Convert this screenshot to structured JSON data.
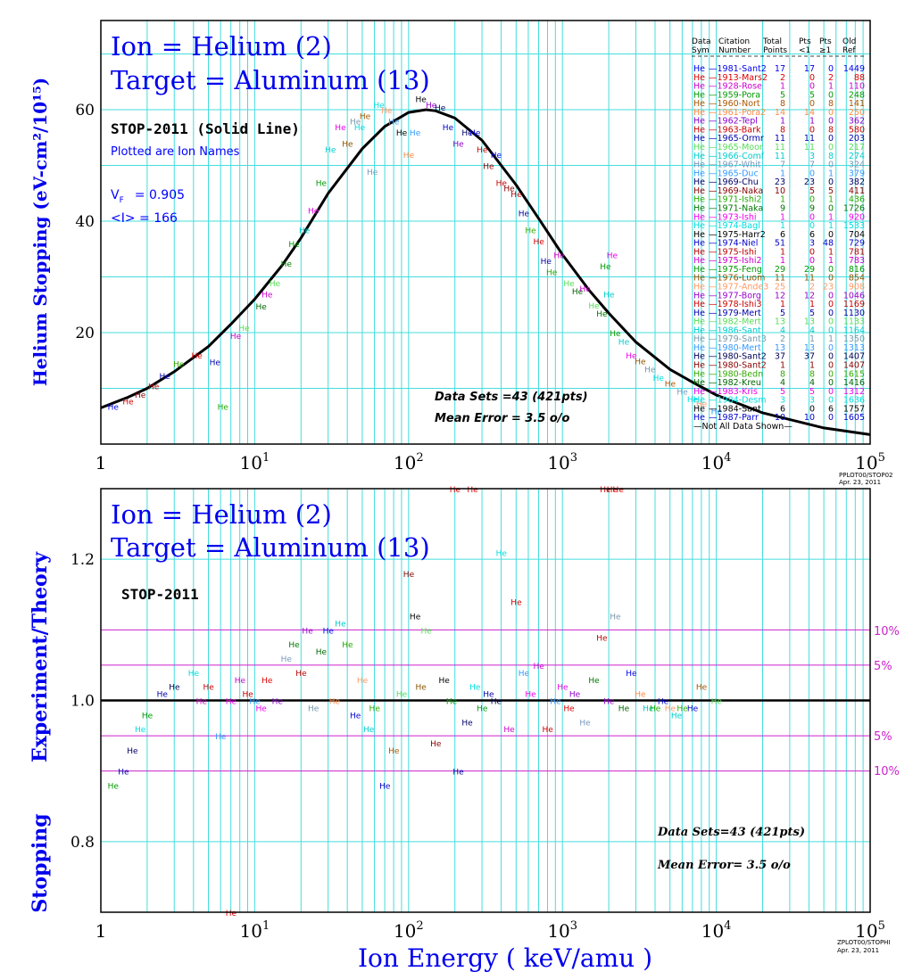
{
  "colors": {
    "grid": "#44dddd",
    "axis": "#000000",
    "title": "#0000ee",
    "theory": "#000000",
    "band": "#cc22cc",
    "label_blue": "#0000ff"
  },
  "top_panel": {
    "title_ion": "Ion = Helium (2)",
    "title_target": "Target = Aluminum (13)",
    "theory_label": "STOP-2011 (Solid Line)",
    "plotted_note": "Plotted are Ion Names",
    "vf_label": "V",
    "vf_sub": "F",
    "vf_value": "= 0.905",
    "i_label": "<I> = 166",
    "ylabel": "Helium Stopping (eV-cm²/10¹⁵)",
    "stats_sets": "Data Sets =43 (421pts)",
    "stats_error": "Mean Error =  3.5 o/o",
    "stamp1": "PPLOT00/STOP02",
    "stamp2": "Apr. 23, 2011"
  },
  "bottom_panel": {
    "title_ion": "Ion = Helium (2)",
    "title_target": "Target = Aluminum (13)",
    "theory_label": "STOP-2011",
    "ylabel_1": "Stopping",
    "ylabel_2": "Experiment/Theory",
    "xlabel": "Ion  Energy  ( keV/amu )",
    "stats_sets": "Data Sets=43 (421pts)",
    "stats_error": "Mean Error=  3.5 o/o",
    "band_10_top": "10%",
    "band_5_top": "5%",
    "band_5_bot": "5%",
    "band_10_bot": "10%",
    "stamp1": "ZPLOT00/STOPHI",
    "stamp2": "Apr. 23, 2011"
  },
  "legend": {
    "header1": [
      "Data",
      "Citation",
      "Total",
      "Pts",
      "Pts",
      "Old"
    ],
    "header2": [
      "Sym",
      "Number",
      "Points",
      "<1",
      "≥1",
      "Ref"
    ],
    "footer": "—Not All Data Shown—",
    "rows": [
      {
        "sym": "He",
        "cite": "1981-Sant2",
        "total": "17",
        "lt1": "17",
        "ge1": "0",
        "ref": "1449",
        "color": "#0000ee"
      },
      {
        "sym": "He",
        "cite": "1913-Mars2",
        "total": "2",
        "lt1": "0",
        "ge1": "2",
        "ref": "88",
        "color": "#dd0000"
      },
      {
        "sym": "He",
        "cite": "1928-Rose",
        "total": "1",
        "lt1": "0",
        "ge1": "1",
        "ref": "110",
        "color": "#cc00cc"
      },
      {
        "sym": "He",
        "cite": "1959-Pora",
        "total": "5",
        "lt1": "5",
        "ge1": "0",
        "ref": "248",
        "color": "#009900"
      },
      {
        "sym": "He",
        "cite": "1960-Nort",
        "total": "8",
        "lt1": "0",
        "ge1": "8",
        "ref": "141",
        "color": "#aa5500"
      },
      {
        "sym": "He",
        "cite": "1961-Pora2",
        "total": "14",
        "lt1": "14",
        "ge1": "0",
        "ref": "250",
        "color": "#ff8844"
      },
      {
        "sym": "He",
        "cite": "1962-Tepl",
        "total": "1",
        "lt1": "1",
        "ge1": "0",
        "ref": "362",
        "color": "#8800cc"
      },
      {
        "sym": "He",
        "cite": "1963-Bark",
        "total": "8",
        "lt1": "0",
        "ge1": "8",
        "ref": "580",
        "color": "#cc0000"
      },
      {
        "sym": "He",
        "cite": "1965-Ormr",
        "total": "11",
        "lt1": "11",
        "ge1": "0",
        "ref": "203",
        "color": "#0000aa"
      },
      {
        "sym": "He",
        "cite": "1965-Moor",
        "total": "11",
        "lt1": "11",
        "ge1": "0",
        "ref": "217",
        "color": "#55dd55"
      },
      {
        "sym": "He",
        "cite": "1966-Comf",
        "total": "11",
        "lt1": "3",
        "ge1": "8",
        "ref": "274",
        "color": "#00cccc"
      },
      {
        "sym": "He",
        "cite": "1967-Whit",
        "total": "7",
        "lt1": "7",
        "ge1": "0",
        "ref": "324",
        "color": "#7799bb"
      },
      {
        "sym": "He",
        "cite": "1965-Duc",
        "total": "1",
        "lt1": "0",
        "ge1": "1",
        "ref": "379",
        "color": "#3399ff"
      },
      {
        "sym": "He",
        "cite": "1969-Chu",
        "total": "23",
        "lt1": "23",
        "ge1": "0",
        "ref": "382",
        "color": "#000066"
      },
      {
        "sym": "He",
        "cite": "1969-Naka",
        "total": "10",
        "lt1": "5",
        "ge1": "5",
        "ref": "411",
        "color": "#880000"
      },
      {
        "sym": "He",
        "cite": "1971-Ishi2",
        "total": "1",
        "lt1": "0",
        "ge1": "1",
        "ref": "436",
        "color": "#22aa00"
      },
      {
        "sym": "He",
        "cite": "1971-Naka",
        "total": "9",
        "lt1": "9",
        "ge1": "0",
        "ref": "1726",
        "color": "#007700"
      },
      {
        "sym": "He",
        "cite": "1973-Ishi",
        "total": "1",
        "lt1": "0",
        "ge1": "1",
        "ref": "920",
        "color": "#ee00ee"
      },
      {
        "sym": "He",
        "cite": "1974-Bagl",
        "total": "1",
        "lt1": "0",
        "ge1": "1",
        "ref": "1533",
        "color": "#00dddd"
      },
      {
        "sym": "He",
        "cite": "1975-Harr2",
        "total": "6",
        "lt1": "6",
        "ge1": "0",
        "ref": "704",
        "color": "#000000"
      },
      {
        "sym": "He",
        "cite": "1974-Niel",
        "total": "51",
        "lt1": "3",
        "ge1": "48",
        "ref": "729",
        "color": "#0000cc"
      },
      {
        "sym": "He",
        "cite": "1975-Ishi",
        "total": "1",
        "lt1": "0",
        "ge1": "1",
        "ref": "781",
        "color": "#bb0000"
      },
      {
        "sym": "He",
        "cite": "1975-Ishi2",
        "total": "1",
        "lt1": "0",
        "ge1": "1",
        "ref": "783",
        "color": "#cc00cc"
      },
      {
        "sym": "He",
        "cite": "1975-Feng",
        "total": "29",
        "lt1": "29",
        "ge1": "0",
        "ref": "816",
        "color": "#009900"
      },
      {
        "sym": "He",
        "cite": "1976-Luom",
        "total": "11",
        "lt1": "11",
        "ge1": "0",
        "ref": "854",
        "color": "#885500"
      },
      {
        "sym": "He",
        "cite": "1977-Ande3",
        "total": "25",
        "lt1": "2",
        "ge1": "23",
        "ref": "908",
        "color": "#ff9966"
      },
      {
        "sym": "He",
        "cite": "1977-Borg",
        "total": "12",
        "lt1": "12",
        "ge1": "0",
        "ref": "1046",
        "color": "#9900cc"
      },
      {
        "sym": "He",
        "cite": "1978-Ishi3",
        "total": "1",
        "lt1": "1",
        "ge1": "0",
        "ref": "1169",
        "color": "#cc0000"
      },
      {
        "sym": "He",
        "cite": "1979-Mert",
        "total": "5",
        "lt1": "5",
        "ge1": "0",
        "ref": "1130",
        "color": "#0000aa"
      },
      {
        "sym": "He",
        "cite": "1982-Mert",
        "total": "13",
        "lt1": "13",
        "ge1": "0",
        "ref": "1133",
        "color": "#55dd55"
      },
      {
        "sym": "He",
        "cite": "1986-Sant",
        "total": "4",
        "lt1": "4",
        "ge1": "0",
        "ref": "1164",
        "color": "#00cccc"
      },
      {
        "sym": "He",
        "cite": "1979-Sant3",
        "total": "2",
        "lt1": "1",
        "ge1": "1",
        "ref": "1350",
        "color": "#7799aa"
      },
      {
        "sym": "He",
        "cite": "1980-Mert",
        "total": "13",
        "lt1": "13",
        "ge1": "0",
        "ref": "1313",
        "color": "#3399ff"
      },
      {
        "sym": "He",
        "cite": "1980-Sant2",
        "total": "37",
        "lt1": "37",
        "ge1": "0",
        "ref": "1407",
        "color": "#000055"
      },
      {
        "sym": "He",
        "cite": "1980-Sant2",
        "total": "1",
        "lt1": "1",
        "ge1": "0",
        "ref": "1407",
        "color": "#880000"
      },
      {
        "sym": "He",
        "cite": "1980-Bedn",
        "total": "8",
        "lt1": "8",
        "ge1": "0",
        "ref": "1615",
        "color": "#33aa00"
      },
      {
        "sym": "He",
        "cite": "1982-Kreu",
        "total": "4",
        "lt1": "4",
        "ge1": "0",
        "ref": "1416",
        "color": "#006600"
      },
      {
        "sym": "He",
        "cite": "1983-Kris",
        "total": "5",
        "lt1": "5",
        "ge1": "0",
        "ref": "1312",
        "color": "#ee00ee"
      },
      {
        "sym": "He",
        "cite": "1984-Desm",
        "total": "3",
        "lt1": "3",
        "ge1": "0",
        "ref": "1636",
        "color": "#00dddd"
      },
      {
        "sym": "He",
        "cite": "1984-Sant",
        "total": "6",
        "lt1": "0",
        "ge1": "6",
        "ref": "1757",
        "color": "#000000"
      },
      {
        "sym": "He",
        "cite": "1987-Parr",
        "total": "10",
        "lt1": "10",
        "ge1": "0",
        "ref": "1605",
        "color": "#0000cc"
      }
    ]
  },
  "chart_data": [
    {
      "type": "scatter",
      "title": "Ion = Helium (2) / Target = Aluminum (13)",
      "xlabel": "Ion Energy ( keV/amu )",
      "ylabel": "Helium Stopping (eV-cm²/10¹⁵)",
      "xscale": "log",
      "xlim": [
        1,
        100000
      ],
      "ylim": [
        0,
        76
      ],
      "grid": true,
      "marker_text": "He",
      "x_ticks": [
        "1",
        "10^1",
        "10^2",
        "10^3",
        "10^4",
        "10^5"
      ],
      "y_ticks": [
        20,
        40,
        60
      ],
      "theory_curve": {
        "name": "STOP-2011 (Solid Line)",
        "x": [
          1,
          1.5,
          2,
          3,
          5,
          7,
          10,
          15,
          20,
          30,
          50,
          70,
          100,
          130,
          150,
          200,
          300,
          500,
          700,
          1000,
          1500,
          2000,
          3000,
          5000,
          7000,
          10000,
          20000,
          50000,
          100000
        ],
        "y": [
          6.5,
          8.4,
          10.0,
          13.0,
          17.5,
          21.5,
          26,
          32,
          37,
          45,
          53,
          57,
          59.5,
          60,
          59.8,
          58.5,
          54.5,
          46.5,
          40.5,
          34,
          27.5,
          23.5,
          18.3,
          13.4,
          11.1,
          8.8,
          5.6,
          2.9,
          1.7
        ]
      },
      "series": [
        {
          "name": "measured",
          "x": [
            1.2,
            1.5,
            1.8,
            2.2,
            2.6,
            3.2,
            4.2,
            5.5,
            6.2,
            7.5,
            8.5,
            11,
            12,
            13.5,
            16,
            18,
            21,
            24,
            27,
            31,
            36,
            40,
            45,
            48,
            52,
            58,
            64,
            72,
            80,
            90,
            100,
            110,
            120,
            140,
            160,
            180,
            210,
            240,
            270,
            300,
            330,
            370,
            400,
            450,
            500,
            560,
            620,
            700,
            780,
            850,
            950,
            1100,
            1250,
            1400,
            1600,
            1800,
            1900,
            2000,
            2100,
            2200,
            2500,
            2800,
            3200,
            3700,
            4200,
            5000,
            6000,
            7000,
            8000,
            10000
          ],
          "y": [
            6.8,
            7.8,
            9.0,
            10.5,
            12.3,
            14.5,
            16,
            14.8,
            6.8,
            19.5,
            21,
            24.8,
            27,
            29,
            32.5,
            36,
            38.5,
            42,
            47,
            53,
            57,
            54,
            58,
            57,
            59,
            49,
            61,
            60,
            58,
            56,
            52,
            56,
            62,
            61,
            60.5,
            57,
            54,
            56,
            56,
            53,
            50,
            52,
            47,
            46,
            45,
            41.5,
            38.5,
            36.5,
            33,
            31,
            34,
            29,
            27.5,
            28,
            25,
            23.5,
            32,
            27,
            34,
            20,
            18.5,
            16,
            15,
            13.5,
            12,
            11,
            9.5,
            8.2,
            7.4,
            6
          ]
        }
      ]
    },
    {
      "type": "scatter",
      "title": "Ion = Helium (2) / Target = Aluminum (13)",
      "xlabel": "Ion Energy ( keV/amu )",
      "ylabel": "Stopping Experiment/Theory",
      "xscale": "log",
      "xlim": [
        1,
        100000
      ],
      "ylim": [
        0.7,
        1.3
      ],
      "grid": true,
      "marker_text": "He",
      "x_ticks": [
        "1",
        "10^1",
        "10^2",
        "10^3",
        "10^4",
        "10^5"
      ],
      "y_ticks": [
        0.8,
        1.0,
        1.2
      ],
      "reference_lines": [
        {
          "y": 1.1,
          "label": "10%"
        },
        {
          "y": 1.05,
          "label": "5%"
        },
        {
          "y": 1.0,
          "label": ""
        },
        {
          "y": 0.95,
          "label": "5%"
        },
        {
          "y": 0.9,
          "label": "10%"
        }
      ],
      "series": [
        {
          "name": "measured",
          "x": [
            1.2,
            1.4,
            1.6,
            1.8,
            2.0,
            2.5,
            3.0,
            4.0,
            4.5,
            5.0,
            6.0,
            7.0,
            8.0,
            9.0,
            10,
            11,
            12,
            14,
            16,
            18,
            20,
            22,
            24,
            27,
            30,
            33,
            36,
            40,
            45,
            50,
            55,
            60,
            70,
            80,
            90,
            100,
            110,
            120,
            130,
            150,
            170,
            190,
            210,
            240,
            270,
            300,
            330,
            370,
            400,
            450,
            500,
            560,
            620,
            700,
            800,
            900,
            1000,
            1100,
            1200,
            1400,
            1600,
            1800,
            2000,
            2200,
            2500,
            2800,
            3200,
            3600,
            4000,
            4500,
            5000,
            5500,
            6000,
            7000,
            8000,
            10000
          ],
          "y": [
            0.88,
            0.9,
            0.93,
            0.96,
            0.98,
            1.01,
            1.02,
            1.04,
            1.0,
            1.02,
            0.95,
            1.0,
            1.03,
            1.01,
            1.0,
            0.99,
            1.03,
            1.0,
            1.06,
            1.08,
            1.04,
            1.1,
            0.99,
            1.07,
            1.1,
            1.0,
            1.11,
            1.08,
            0.98,
            1.03,
            0.96,
            0.99,
            0.88,
            0.93,
            1.01,
            1.18,
            1.12,
            1.02,
            1.1,
            0.94,
            1.03,
            1.0,
            0.9,
            0.97,
            1.02,
            0.99,
            1.01,
            1.0,
            1.21,
            0.96,
            1.14,
            1.04,
            1.01,
            1.05,
            0.96,
            1.0,
            1.02,
            0.99,
            1.01,
            0.97,
            1.03,
            1.09,
            1.0,
            1.12,
            0.99,
            1.04,
            1.01,
            0.99,
            0.99,
            1.0,
            0.99,
            0.98,
            0.99,
            0.99,
            1.02,
            1.0
          ]
        },
        {
          "name": "off-scale",
          "x": [
            200,
            260,
            1900,
            2100,
            2300,
            7
          ],
          "y": [
            1.3,
            1.3,
            1.3,
            1.3,
            1.3,
            0.7
          ]
        }
      ]
    }
  ]
}
